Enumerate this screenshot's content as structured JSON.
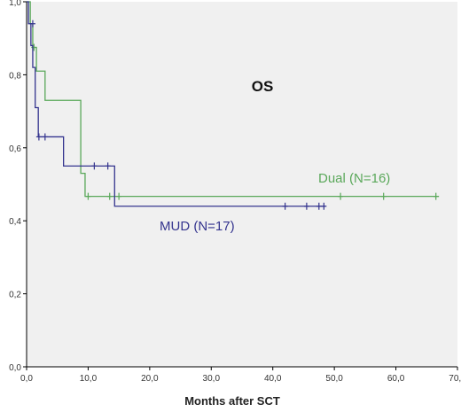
{
  "chart_data": {
    "type": "line",
    "title": "OS",
    "xlabel": "Months after SCT",
    "ylabel": "",
    "xlim": [
      0,
      70
    ],
    "ylim": [
      0,
      1
    ],
    "x_ticks": [
      "0,0",
      "10,0",
      "20,0",
      "30,0",
      "40,0",
      "50,0",
      "60,0",
      "70,0"
    ],
    "y_ticks": [
      "0,0",
      "0,2",
      "0,4",
      "0,6",
      "0,8",
      "1,0"
    ],
    "grid": false,
    "background_color": "#f0f0f0",
    "series": [
      {
        "name": "Dual (N=16)",
        "color": "#5aa85a",
        "step_times": [
          0,
          0.6,
          1.0,
          1.6,
          3.0,
          8.8,
          9.5,
          70
        ],
        "step_values": [
          1.0,
          0.94,
          0.875,
          0.81,
          0.73,
          0.53,
          0.467,
          0.467
        ],
        "end_x": 67,
        "censored": [
          {
            "x": 1.2,
            "y": 0.875
          },
          {
            "x": 10.0,
            "y": 0.467
          },
          {
            "x": 13.5,
            "y": 0.467
          },
          {
            "x": 15.0,
            "y": 0.467
          },
          {
            "x": 51.0,
            "y": 0.467
          },
          {
            "x": 58.0,
            "y": 0.467
          },
          {
            "x": 66.5,
            "y": 0.467
          }
        ]
      },
      {
        "name": "MUD (N=17)",
        "color": "#34348e",
        "step_times": [
          0,
          0.3,
          0.7,
          1.0,
          1.4,
          1.9,
          6.0,
          14.3,
          70
        ],
        "step_values": [
          1.0,
          0.94,
          0.88,
          0.82,
          0.71,
          0.63,
          0.55,
          0.44,
          0.44
        ],
        "end_x": 48.5,
        "censored": [
          {
            "x": 1.0,
            "y": 0.94
          },
          {
            "x": 2.0,
            "y": 0.63
          },
          {
            "x": 3.0,
            "y": 0.63
          },
          {
            "x": 11.0,
            "y": 0.55
          },
          {
            "x": 13.2,
            "y": 0.55
          },
          {
            "x": 42.0,
            "y": 0.44
          },
          {
            "x": 45.5,
            "y": 0.44
          },
          {
            "x": 47.5,
            "y": 0.44
          },
          {
            "x": 48.3,
            "y": 0.44
          }
        ]
      }
    ]
  }
}
